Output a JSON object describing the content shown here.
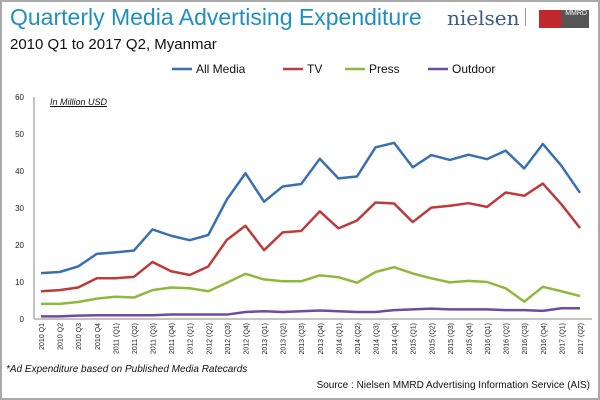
{
  "chart_data": {
    "type": "line",
    "title": "Quarterly Media Advertising Expenditure",
    "subtitle": "2010 Q1 to 2017 Q2, Myanmar",
    "unit_label": "In Million USD",
    "ylim": [
      0,
      60
    ],
    "yticks": [
      0,
      10,
      20,
      30,
      40,
      50,
      60
    ],
    "grid": false,
    "legend": "top",
    "categories": [
      "2010 Q1",
      "2010 Q2",
      "2010 Q3",
      "2010 Q4",
      "2011 (Q1)",
      "2011 (Q2)",
      "2011 (Q3)",
      "2011 (Q4)",
      "2012 (Q1)",
      "2012 (Q2)",
      "2012 (Q3)",
      "2012 (Q4)",
      "2013 (Q1)",
      "2013 (Q2)",
      "2013 (Q3)",
      "2013 (Q4)",
      "2014 (Q1)",
      "2014 (Q2)",
      "2014 (Q3)",
      "2014 (Q4)",
      "2015 (Q1)",
      "2015 (Q2)",
      "2015 (Q3)",
      "2015 (Q4)",
      "2016 (Q1)",
      "2016 (Q2)",
      "2016 (Q3)",
      "2016 (Q4)",
      "2017 (Q1)",
      "2017 (Q2)"
    ],
    "series": [
      {
        "name": "All Media",
        "color": "#3a6fb0",
        "values": [
          12.4,
          12.7,
          14.2,
          17.6,
          18,
          18.5,
          24.2,
          22.5,
          21.3,
          22.7,
          32.3,
          39.4,
          31.7,
          35.8,
          36.5,
          43.3,
          38,
          38.5,
          46.4,
          47.6,
          41,
          44.3,
          43,
          44.4,
          43.2,
          45.5,
          40.7,
          47.3,
          41.4,
          34.1
        ]
      },
      {
        "name": "TV",
        "color": "#bf3a3a",
        "values": [
          7.5,
          7.8,
          8.5,
          11,
          11,
          11.4,
          15.4,
          12.9,
          11.9,
          14.2,
          21.4,
          25.2,
          18.6,
          23.4,
          23.8,
          29.1,
          24.5,
          26.6,
          31.5,
          31.2,
          26.2,
          30.1,
          30.6,
          31.3,
          30.3,
          34.2,
          33.3,
          36.6,
          31,
          24.6
        ]
      },
      {
        "name": "Press",
        "color": "#8fb83c",
        "values": [
          4.1,
          4.1,
          4.6,
          5.5,
          6,
          5.8,
          7.8,
          8.5,
          8.3,
          7.5,
          9.8,
          12.2,
          10.7,
          10.2,
          10.2,
          11.8,
          11.3,
          9.8,
          12.7,
          14,
          12.3,
          11,
          9.9,
          10.3,
          10,
          8.3,
          4.7,
          8.7,
          7.5,
          6.2
        ]
      },
      {
        "name": "Outdoor",
        "color": "#6f4a9e",
        "values": [
          0.7,
          0.7,
          0.9,
          1,
          1,
          1,
          1,
          1.2,
          1.2,
          1.2,
          1.2,
          1.9,
          2.1,
          1.9,
          2.1,
          2.3,
          2.1,
          1.9,
          1.9,
          2.4,
          2.6,
          2.8,
          2.6,
          2.6,
          2.6,
          2.4,
          2.4,
          2.2,
          2.9,
          2.9
        ]
      }
    ]
  },
  "logos": {
    "nielsen": "nielsen",
    "mmrd": "MMRD research services"
  },
  "footnote": "*Ad Expenditure based on Published Media Ratecards",
  "source": "Source : Nielsen MMRD Advertising Information Service (AIS)"
}
